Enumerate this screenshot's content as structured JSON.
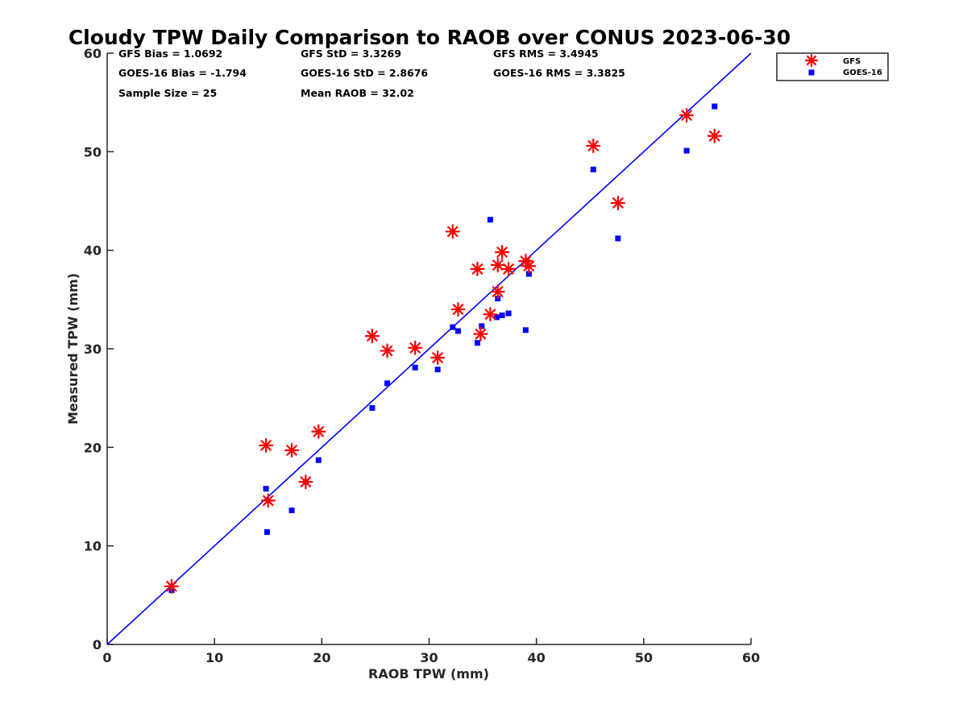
{
  "chart_data": {
    "type": "scatter",
    "title": "Cloudy TPW Daily Comparison to RAOB over CONUS 2023-06-30",
    "xlabel": "RAOB TPW (mm)",
    "ylabel": "Measured TPW (mm)",
    "xlim": [
      0,
      60
    ],
    "ylim": [
      0,
      60
    ],
    "xticks": [
      0,
      10,
      20,
      30,
      40,
      50,
      60
    ],
    "yticks": [
      0,
      10,
      20,
      30,
      40,
      50,
      60
    ],
    "grid": false,
    "legend_position": "top-right outside",
    "stats": {
      "gfs_bias": "GFS Bias = 1.0692",
      "goes_bias": "GOES-16 Bias = -1.794",
      "sample_size": "Sample Size = 25",
      "gfs_std": "GFS StD = 3.3269",
      "goes_std": "GOES-16 StD = 2.8676",
      "mean_raob": "Mean RAOB = 32.02",
      "gfs_rms": "GFS RMS = 3.4945",
      "goes_rms": "GOES-16 RMS = 3.3825"
    },
    "reference_line": {
      "x": [
        0,
        60
      ],
      "y": [
        0,
        60
      ],
      "color": "#0000ff"
    },
    "series": [
      {
        "name": "GFS",
        "marker": "asterisk",
        "color": "#ff0000",
        "points": [
          [
            6.0,
            5.9
          ],
          [
            14.8,
            20.2
          ],
          [
            15.0,
            14.6
          ],
          [
            17.2,
            19.7
          ],
          [
            18.5,
            16.5
          ],
          [
            19.7,
            21.6
          ],
          [
            24.7,
            31.3
          ],
          [
            26.1,
            29.8
          ],
          [
            28.7,
            30.1
          ],
          [
            30.8,
            29.1
          ],
          [
            32.2,
            41.9
          ],
          [
            32.7,
            34.0
          ],
          [
            34.5,
            38.1
          ],
          [
            34.8,
            31.5
          ],
          [
            35.7,
            33.5
          ],
          [
            36.4,
            35.8
          ],
          [
            36.4,
            38.5
          ],
          [
            36.8,
            39.8
          ],
          [
            37.4,
            38.1
          ],
          [
            39.0,
            38.9
          ],
          [
            39.3,
            38.4
          ],
          [
            45.3,
            50.6
          ],
          [
            47.6,
            44.8
          ],
          [
            54.0,
            53.7
          ],
          [
            56.6,
            51.6
          ]
        ]
      },
      {
        "name": "GOES-16",
        "marker": "square",
        "color": "#0000ff",
        "points": [
          [
            6.0,
            5.5
          ],
          [
            14.8,
            15.8
          ],
          [
            14.9,
            11.4
          ],
          [
            17.2,
            13.6
          ],
          [
            18.5,
            16.5
          ],
          [
            19.7,
            18.7
          ],
          [
            24.7,
            24.0
          ],
          [
            26.1,
            26.5
          ],
          [
            28.7,
            28.1
          ],
          [
            30.8,
            27.9
          ],
          [
            32.2,
            32.2
          ],
          [
            32.7,
            31.8
          ],
          [
            34.5,
            30.6
          ],
          [
            34.9,
            32.3
          ],
          [
            35.7,
            43.1
          ],
          [
            36.3,
            33.2
          ],
          [
            36.4,
            35.1
          ],
          [
            36.8,
            33.4
          ],
          [
            37.4,
            33.6
          ],
          [
            39.0,
            31.9
          ],
          [
            39.3,
            37.6
          ],
          [
            45.3,
            48.2
          ],
          [
            47.6,
            41.2
          ],
          [
            54.0,
            50.1
          ],
          [
            56.6,
            54.6
          ]
        ]
      }
    ]
  }
}
